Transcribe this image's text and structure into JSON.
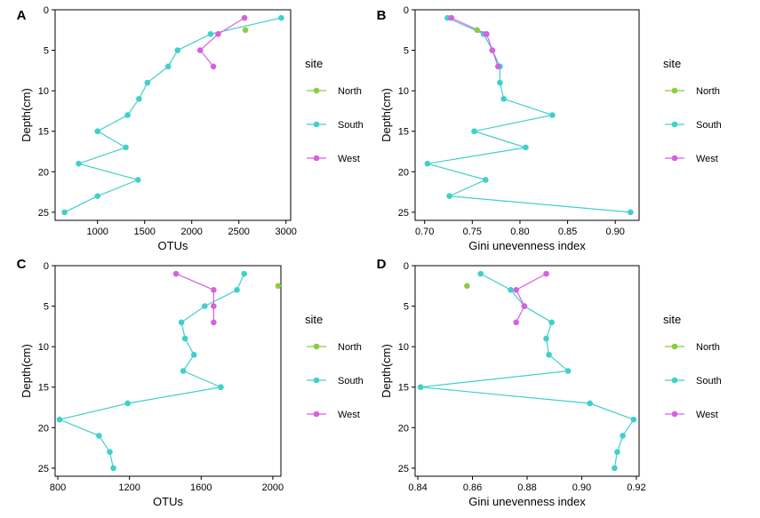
{
  "colors": {
    "North": "#8fcb3f",
    "South": "#3fd0cc",
    "West": "#d95fe0",
    "axis": "#000000"
  },
  "chart_data": [
    {
      "panel": "A",
      "type": "line",
      "xlabel": "OTUs",
      "ylabel": "Depth(cm)",
      "xlim": [
        550,
        3050
      ],
      "ylim": [
        0,
        26
      ],
      "xticks": [
        1000,
        1500,
        2000,
        2500,
        3000
      ],
      "xtick_labels": [
        "1000",
        "1500",
        "2000",
        "2500",
        "3000"
      ],
      "yticks": [
        0,
        5,
        10,
        15,
        20,
        25
      ],
      "ytick_labels": [
        "0",
        "5",
        "10",
        "15",
        "20",
        "25"
      ],
      "legend": {
        "title": "site",
        "entries": [
          "North",
          "South",
          "West"
        ],
        "placement": "right"
      },
      "series": [
        {
          "name": "North",
          "points": [
            [
              2570,
              2.5
            ]
          ]
        },
        {
          "name": "South",
          "points": [
            [
              2950,
              1
            ],
            [
              2200,
              3
            ],
            [
              1850,
              5
            ],
            [
              1750,
              7
            ],
            [
              1530,
              9
            ],
            [
              1440,
              11
            ],
            [
              1320,
              13
            ],
            [
              1000,
              15
            ],
            [
              1300,
              17
            ],
            [
              800,
              19
            ],
            [
              1430,
              21
            ],
            [
              1000,
              23
            ],
            [
              650,
              25
            ]
          ]
        },
        {
          "name": "West",
          "points": [
            [
              2560,
              1
            ],
            [
              2280,
              3
            ],
            [
              2090,
              5
            ],
            [
              2230,
              7
            ]
          ]
        }
      ]
    },
    {
      "panel": "B",
      "type": "line",
      "xlabel": "Gini unevenness index",
      "ylabel": "Depth(cm)",
      "xlim": [
        0.69,
        0.925
      ],
      "ylim": [
        0,
        26
      ],
      "xticks": [
        0.7,
        0.75,
        0.8,
        0.85,
        0.9
      ],
      "xtick_labels": [
        "0.70",
        "0.75",
        "0.80",
        "0.85",
        "0.90"
      ],
      "yticks": [
        0,
        5,
        10,
        15,
        20,
        25
      ],
      "ytick_labels": [
        "0",
        "5",
        "10",
        "15",
        "20",
        "25"
      ],
      "legend": {
        "title": "site",
        "entries": [
          "North",
          "South",
          "West"
        ],
        "placement": "right"
      },
      "series": [
        {
          "name": "North",
          "points": [
            [
              0.755,
              2.5
            ]
          ]
        },
        {
          "name": "South",
          "points": [
            [
              0.724,
              1
            ],
            [
              0.762,
              3
            ],
            [
              0.771,
              5
            ],
            [
              0.779,
              7
            ],
            [
              0.779,
              9
            ],
            [
              0.783,
              11
            ],
            [
              0.834,
              13
            ],
            [
              0.752,
              15
            ],
            [
              0.806,
              17
            ],
            [
              0.703,
              19
            ],
            [
              0.764,
              21
            ],
            [
              0.726,
              23
            ],
            [
              0.916,
              25
            ]
          ]
        },
        {
          "name": "West",
          "points": [
            [
              0.728,
              1
            ],
            [
              0.765,
              3
            ],
            [
              0.771,
              5
            ],
            [
              0.777,
              7
            ]
          ]
        }
      ]
    },
    {
      "panel": "C",
      "type": "line",
      "xlabel": "OTUs",
      "ylabel": "Depth(cm)",
      "xlim": [
        785,
        2045
      ],
      "ylim": [
        0,
        26
      ],
      "xticks": [
        800,
        1200,
        1600,
        2000
      ],
      "xtick_labels": [
        "800",
        "1200",
        "1600",
        "2000"
      ],
      "yticks": [
        0,
        5,
        10,
        15,
        20,
        25
      ],
      "ytick_labels": [
        "0",
        "5",
        "10",
        "15",
        "20",
        "25"
      ],
      "legend": {
        "title": "site",
        "entries": [
          "North",
          "South",
          "West"
        ],
        "placement": "right"
      },
      "series": [
        {
          "name": "North",
          "points": [
            [
              2030,
              2.5
            ]
          ]
        },
        {
          "name": "South",
          "points": [
            [
              1840,
              1
            ],
            [
              1800,
              3
            ],
            [
              1620,
              5
            ],
            [
              1490,
              7
            ],
            [
              1510,
              9
            ],
            [
              1560,
              11
            ],
            [
              1500,
              13
            ],
            [
              1710,
              15
            ],
            [
              1190,
              17
            ],
            [
              810,
              19
            ],
            [
              1030,
              21
            ],
            [
              1090,
              23
            ],
            [
              1110,
              25
            ]
          ]
        },
        {
          "name": "West",
          "points": [
            [
              1460,
              1
            ],
            [
              1670,
              3
            ],
            [
              1670,
              5
            ],
            [
              1670,
              7
            ]
          ]
        }
      ]
    },
    {
      "panel": "D",
      "type": "line",
      "xlabel": "Gini unevenness index",
      "ylabel": "Depth(cm)",
      "xlim": [
        0.839,
        0.921
      ],
      "ylim": [
        0,
        26
      ],
      "xticks": [
        0.84,
        0.86,
        0.88,
        0.9,
        0.92
      ],
      "xtick_labels": [
        "0.84",
        "0.86",
        "0.88",
        "0.90",
        "0.92"
      ],
      "yticks": [
        0,
        5,
        10,
        15,
        20,
        25
      ],
      "ytick_labels": [
        "0",
        "5",
        "10",
        "15",
        "20",
        "25"
      ],
      "legend": {
        "title": "site",
        "entries": [
          "North",
          "South",
          "West"
        ],
        "placement": "right"
      },
      "series": [
        {
          "name": "North",
          "points": [
            [
              0.858,
              2.5
            ]
          ]
        },
        {
          "name": "South",
          "points": [
            [
              0.863,
              1
            ],
            [
              0.874,
              3
            ],
            [
              0.879,
              5
            ],
            [
              0.889,
              7
            ],
            [
              0.887,
              9
            ],
            [
              0.888,
              11
            ],
            [
              0.895,
              13
            ],
            [
              0.841,
              15
            ],
            [
              0.903,
              17
            ],
            [
              0.919,
              19
            ],
            [
              0.915,
              21
            ],
            [
              0.913,
              23
            ],
            [
              0.912,
              25
            ]
          ]
        },
        {
          "name": "West",
          "points": [
            [
              0.887,
              1
            ],
            [
              0.876,
              3
            ],
            [
              0.879,
              5
            ],
            [
              0.876,
              7
            ]
          ]
        }
      ]
    }
  ]
}
